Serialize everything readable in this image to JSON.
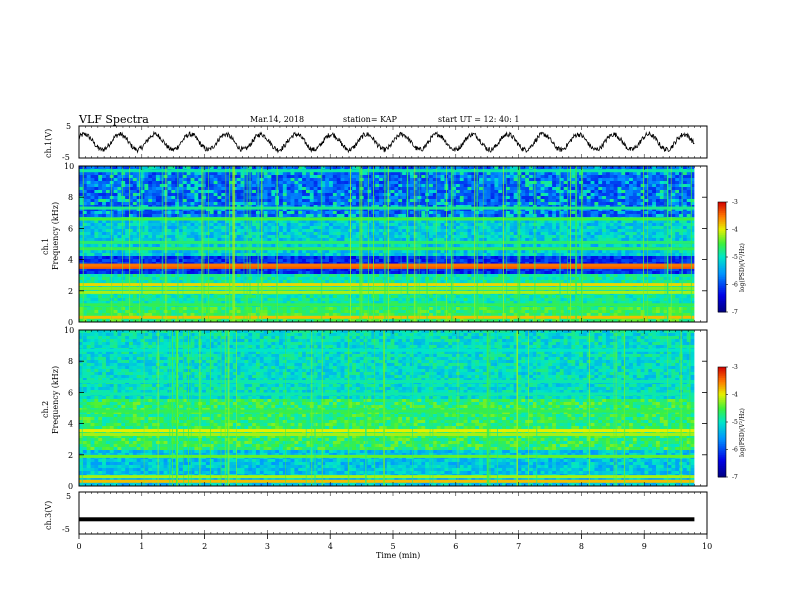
{
  "header": {
    "title": "VLF Spectra",
    "date": "Mar.14, 2018",
    "station": "station= KAP",
    "start_ut": "start  UT  =   12: 40: 1"
  },
  "chart_data": [
    {
      "id": "ch1-waveform",
      "type": "line",
      "ylabel": "ch.1(V)",
      "ylim": [
        -5,
        5
      ],
      "yticks": [
        "5",
        "-5"
      ],
      "xlim": [
        0,
        10
      ],
      "description_values": "oscillating waveform spanning about -3 to 3 V, ~1.75 cycles per minute, data ends near 9.8 min"
    },
    {
      "id": "ch1-spectrogram",
      "type": "heatmap",
      "ylabel": "ch.1\nFrequency (kHz)",
      "ylim": [
        0,
        10
      ],
      "yticks": [
        "0",
        "2",
        "4",
        "6",
        "8",
        "10"
      ],
      "xlim": [
        0,
        10
      ],
      "colorbar": {
        "label": "log(PSD)(V²/Hz)",
        "range": [
          -7,
          -3
        ],
        "ticks": [
          "-3",
          "-4",
          "-5",
          "-6",
          "-7"
        ]
      },
      "bands_khz": [
        {
          "f": 0.3,
          "level": -3.8
        },
        {
          "f": 1.1,
          "level": -4.6
        },
        {
          "f": 1.9,
          "level": -4.2
        },
        {
          "f": 2.15,
          "level": -4.3
        },
        {
          "f": 2.4,
          "level": -3.9
        },
        {
          "f": 3.5,
          "level": -3.4
        },
        {
          "f": 3.65,
          "level": -3.5
        },
        {
          "f": 4.7,
          "level": -4.6
        },
        {
          "f": 5.1,
          "level": -4.7
        },
        {
          "f": 6.6,
          "level": -4.5
        },
        {
          "f": 7.3,
          "level": -4.8
        },
        {
          "f": 9.7,
          "level": -4.9
        }
      ]
    },
    {
      "id": "ch2-spectrogram",
      "type": "heatmap",
      "ylabel": "ch.2\nFrequency (kHz)",
      "ylim": [
        0,
        10
      ],
      "yticks": [
        "0",
        "2",
        "4",
        "6",
        "8",
        "10"
      ],
      "xlim": [
        0,
        10
      ],
      "colorbar": {
        "label": "log(PSD)(V²/Hz)",
        "range": [
          -7,
          -3
        ],
        "ticks": [
          "-3",
          "-4",
          "-5",
          "-6",
          "-7"
        ]
      },
      "bands_khz": [
        {
          "f": 0.3,
          "level": -3.8
        },
        {
          "f": 0.6,
          "level": -4.2
        },
        {
          "f": 1.9,
          "level": -4.4
        },
        {
          "f": 3.3,
          "level": -4.2
        },
        {
          "f": 3.55,
          "level": -4.0
        },
        {
          "f": 4.8,
          "level": -4.6
        },
        {
          "f": 5.9,
          "level": -4.9
        },
        {
          "f": 6.7,
          "level": -4.9
        },
        {
          "f": 8.7,
          "level": -5.0
        }
      ]
    },
    {
      "id": "ch3-waveform",
      "type": "line",
      "ylabel": "ch.3(V)",
      "ylim": [
        -5,
        5
      ],
      "yticks": [
        "5",
        "-5"
      ],
      "xlim": [
        0,
        10
      ],
      "constant_value": -1.5,
      "xlabel": "Time  (min)",
      "xticks": [
        "0",
        "1",
        "2",
        "3",
        "4",
        "5",
        "6",
        "7",
        "8",
        "9",
        "10"
      ]
    }
  ]
}
